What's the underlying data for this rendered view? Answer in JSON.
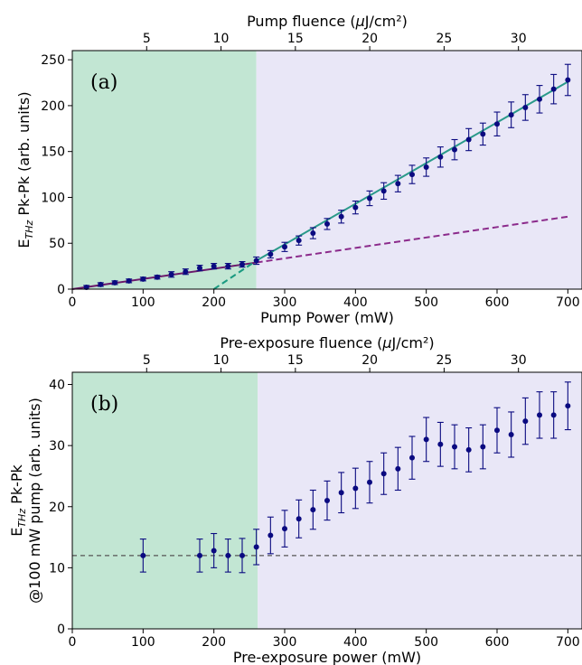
{
  "chart_data": [
    {
      "type": "scatter",
      "panel_label": "(a)",
      "xlabel": "Pump Power (mW)",
      "ylabel": "E_THz Pk-Pk (arb. units)",
      "top_xlabel": "Pump fluence (μJ/cm²)",
      "xlim": [
        0,
        720
      ],
      "ylim": [
        0,
        260
      ],
      "xticks": [
        0,
        100,
        200,
        300,
        400,
        500,
        600,
        700
      ],
      "yticks": [
        0,
        50,
        100,
        150,
        200,
        250
      ],
      "top_ticks": [
        5,
        10,
        15,
        20,
        25,
        30
      ],
      "fluence_per_mW": 0.0476,
      "shaded_regions": [
        {
          "x": [
            0,
            260
          ],
          "color": "#c2e6d3"
        },
        {
          "x": [
            260,
            720
          ],
          "color": "#e9e7f7"
        }
      ],
      "series": [
        {
          "color": "#0a0a80",
          "x": [
            20,
            40,
            60,
            80,
            100,
            120,
            140,
            160,
            180,
            200,
            220,
            240,
            260,
            280,
            300,
            320,
            340,
            360,
            380,
            400,
            420,
            440,
            460,
            480,
            500,
            520,
            540,
            560,
            580,
            600,
            620,
            640,
            660,
            680,
            700
          ],
          "y": [
            2,
            5,
            7,
            9,
            11,
            13,
            16,
            19,
            23,
            25,
            25,
            27,
            31,
            38,
            46,
            53,
            61,
            71,
            79,
            89,
            99,
            107,
            115,
            125,
            133,
            144,
            152,
            163,
            169,
            180,
            190,
            198,
            207,
            218,
            228
          ],
          "yerr": [
            2,
            2,
            2,
            2,
            2,
            2,
            3,
            3,
            3,
            3,
            3,
            3,
            4,
            4,
            5,
            5,
            6,
            6,
            7,
            7,
            8,
            9,
            9,
            10,
            10,
            11,
            11,
            12,
            12,
            13,
            14,
            14,
            15,
            16,
            17
          ]
        }
      ],
      "fit_lines": [
        {
          "style": "solid",
          "color": "#6b1a6b",
          "x": [
            0,
            260
          ],
          "y": [
            0,
            29
          ]
        },
        {
          "style": "dashed",
          "color": "#8b2a8b",
          "x": [
            260,
            700
          ],
          "y": [
            29,
            79
          ]
        },
        {
          "style": "solid",
          "color": "#2a9a8a",
          "x": [
            260,
            700
          ],
          "y": [
            31,
            226
          ]
        },
        {
          "style": "dashed",
          "color": "#1a9a80",
          "x": [
            200,
            260
          ],
          "y": [
            0,
            31
          ]
        }
      ]
    },
    {
      "type": "scatter",
      "panel_label": "(b)",
      "xlabel": "Pre-exposure power (mW)",
      "ylabel_lines": [
        "E_THz Pk-Pk",
        "@100 mW pump (arb. units)"
      ],
      "top_xlabel": "Pre-exposure fluence (μJ/cm²)",
      "xlim": [
        0,
        720
      ],
      "ylim": [
        0,
        42
      ],
      "xticks": [
        0,
        100,
        200,
        300,
        400,
        500,
        600,
        700
      ],
      "yticks": [
        0,
        10,
        20,
        30,
        40
      ],
      "top_ticks": [
        5,
        10,
        15,
        20,
        25,
        30
      ],
      "fluence_per_mW": 0.0476,
      "shaded_regions": [
        {
          "x": [
            0,
            262
          ],
          "color": "#c2e6d3"
        },
        {
          "x": [
            262,
            720
          ],
          "color": "#e9e7f7"
        }
      ],
      "reference_line": {
        "y": 12,
        "style": "dashed",
        "color": "#555555"
      },
      "series": [
        {
          "color": "#0a0a80",
          "x": [
            100,
            180,
            200,
            220,
            240,
            260,
            280,
            300,
            320,
            340,
            360,
            380,
            400,
            420,
            440,
            460,
            480,
            500,
            520,
            540,
            560,
            580,
            600,
            620,
            640,
            660,
            680,
            700
          ],
          "y": [
            12,
            12,
            12.8,
            12,
            12,
            13.4,
            15.3,
            16.4,
            18,
            19.5,
            21,
            22.3,
            23,
            24,
            25.4,
            26.2,
            28,
            31,
            30.2,
            29.8,
            29.3,
            29.8,
            32.5,
            31.8,
            34,
            35,
            35,
            36.5
          ],
          "yerr": [
            2.7,
            2.7,
            2.8,
            2.7,
            2.8,
            2.9,
            3.0,
            3.0,
            3.1,
            3.2,
            3.2,
            3.3,
            3.3,
            3.4,
            3.4,
            3.5,
            3.5,
            3.6,
            3.6,
            3.6,
            3.6,
            3.6,
            3.7,
            3.7,
            3.8,
            3.8,
            3.8,
            3.9
          ]
        }
      ]
    }
  ]
}
